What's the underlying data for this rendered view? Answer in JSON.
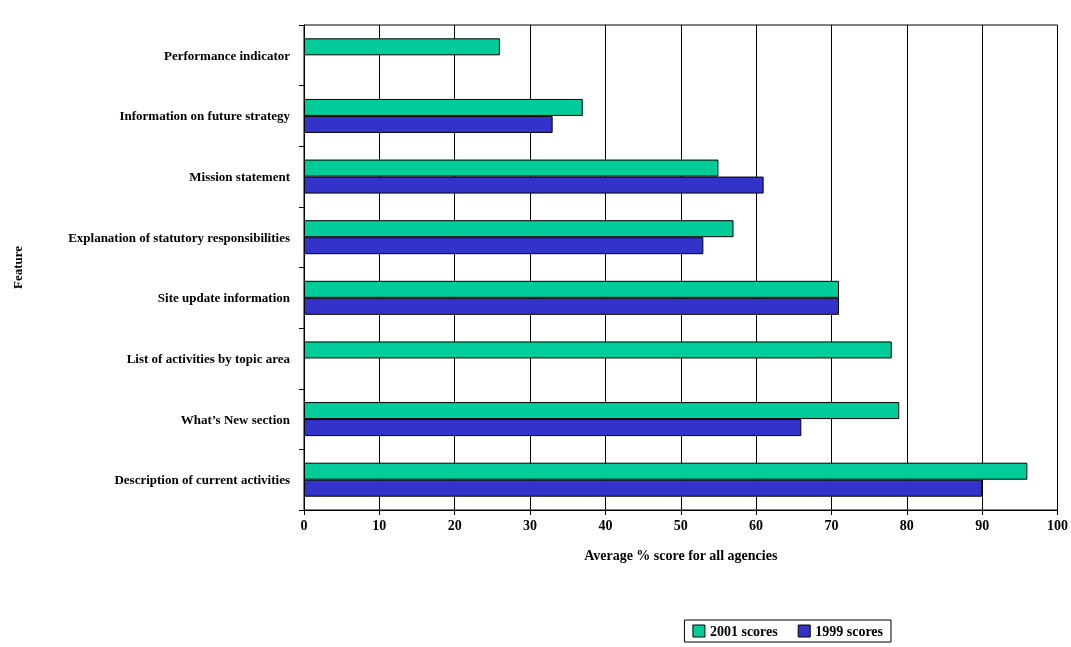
{
  "chart_data": {
    "type": "bar",
    "orientation": "horizontal",
    "categories": [
      "Performance indicator",
      "Information on future strategy",
      "Mission statement",
      "Explanation of statutory responsibilities",
      "Site update information",
      "List of activities by topic area",
      "What’s New section",
      "Description of current activities"
    ],
    "series": [
      {
        "name": "2001 scores",
        "color": "#00cc99",
        "values": [
          26,
          37,
          55,
          57,
          71,
          78,
          79,
          96
        ]
      },
      {
        "name": "1999 scores",
        "color": "#3333cc",
        "values": [
          null,
          33,
          61,
          53,
          71,
          null,
          66,
          90
        ]
      }
    ],
    "xlabel": "Average % score for all agencies",
    "ylabel": "Feature",
    "xlim": [
      0,
      100
    ],
    "xticks": [
      0,
      10,
      20,
      30,
      40,
      50,
      60,
      70,
      80,
      90,
      100
    ],
    "grid": "x",
    "legend": "bottom right"
  }
}
